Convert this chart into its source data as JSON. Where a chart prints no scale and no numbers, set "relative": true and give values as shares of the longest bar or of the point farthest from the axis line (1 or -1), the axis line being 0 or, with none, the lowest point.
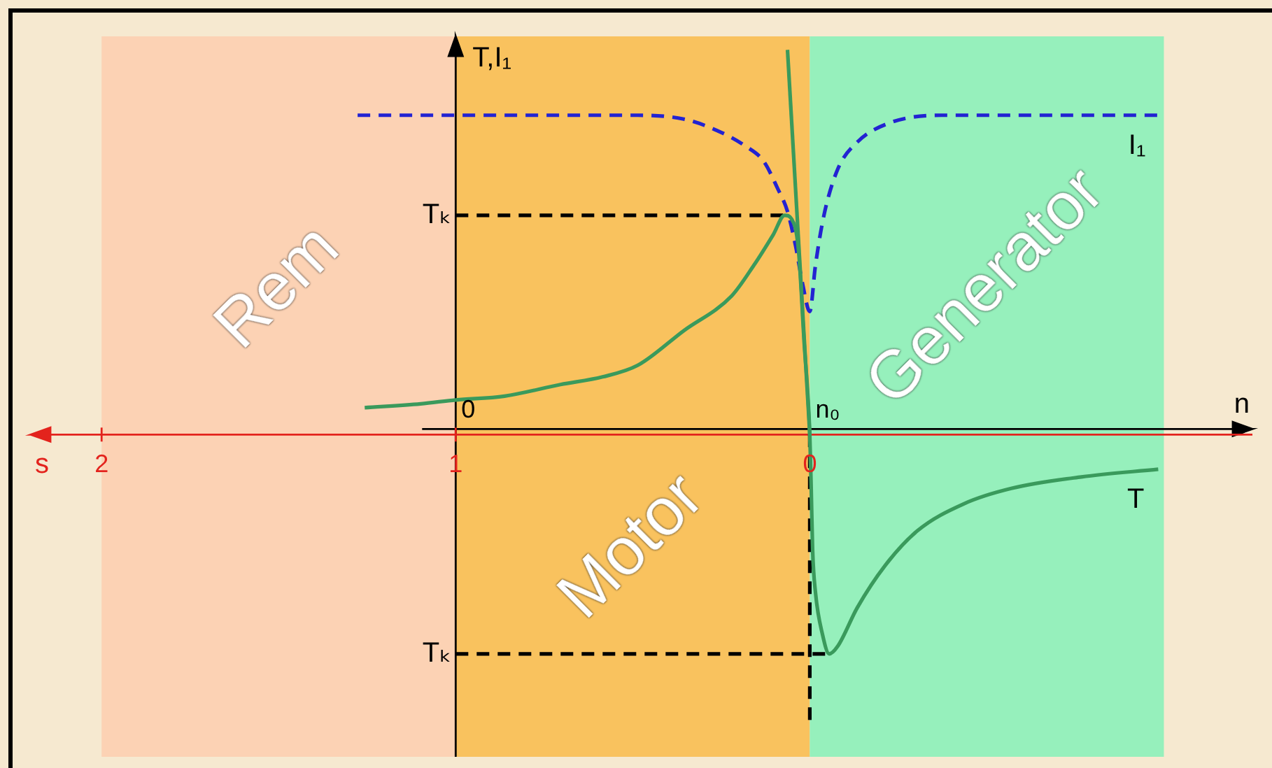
{
  "chart_data": {
    "type": "line",
    "relative": true,
    "xlabel": "s",
    "x2label": "n",
    "ylabel": "T,I₁",
    "xlim": [
      2.2,
      -1.25
    ],
    "xticks": [
      2,
      1,
      0
    ],
    "ref_lines": [
      {
        "axis": "x",
        "value": 1,
        "color": "#000000"
      }
    ],
    "bands": [
      {
        "axis": "x",
        "from": 2,
        "to": 1,
        "label": "Rem",
        "color": "#fcd2b4"
      },
      {
        "axis": "x",
        "from": 1,
        "to": 0,
        "label": "Motor",
        "color": "#f9c25e"
      },
      {
        "axis": "x",
        "from": 0,
        "to": -1,
        "label": "Generator",
        "color": "#96f0bc"
      }
    ],
    "series": [
      {
        "name": "T",
        "color": "#3a9a5c",
        "x": [
          1.257,
          1.099,
          1,
          0.862,
          0.704,
          0.585,
          0.486,
          0.356,
          0.221,
          0.158,
          0.103,
          0.071,
          0.051,
          0.032,
          0.016,
          0,
          -0.004,
          -0.008,
          -0.016,
          -0.036,
          -0.055,
          -0.079,
          -0.134,
          -0.213,
          -0.304,
          -0.435,
          -0.569,
          -0.767,
          -0.984
        ],
        "values": [
          0.07,
          0.08,
          0.09,
          0.1,
          0.13,
          0.15,
          0.18,
          0.27,
          0.36,
          0.44,
          0.52,
          0.57,
          0.56,
          0.48,
          0.24,
          0,
          -0.14,
          -0.3,
          -0.41,
          -0.52,
          -0.57,
          -0.55,
          -0.45,
          -0.34,
          -0.25,
          -0.18,
          -0.14,
          -0.11,
          -0.09
        ]
      },
      {
        "color": "#3a9a5c",
        "x": [
          0.063,
          0
        ],
        "values": [
          1,
          0
        ]
      },
      {
        "name": "I₁",
        "color": "#2323d2",
        "line_style": "dashed",
        "x": [
          1.277,
          1,
          0.704,
          0.486,
          0.356,
          0.261,
          0.182,
          0.13,
          0.091,
          0.063,
          0.04,
          0.02,
          0,
          -0.016,
          -0.04,
          -0.079,
          -0.134,
          -0.225,
          -0.372,
          -0.569,
          -0.988
        ],
        "values": [
          0.83,
          0.83,
          0.83,
          0.83,
          0.82,
          0.79,
          0.75,
          0.71,
          0.64,
          0.58,
          0.49,
          0.39,
          0.32,
          0.44,
          0.57,
          0.69,
          0.76,
          0.81,
          0.83,
          0.83,
          0.83
        ]
      },
      {
        "name": "Tₖ",
        "color": "#000000",
        "line_style": "dashed",
        "x": [
          1,
          0.071
        ],
        "values": [
          0.57,
          0.57
        ]
      },
      {
        "name": "Tₖ",
        "color": "#000000",
        "line_style": "dashed",
        "x": [
          1,
          -0.055
        ],
        "values": [
          -0.57,
          -0.57
        ]
      },
      {
        "color": "#000000",
        "line_style": "dashed",
        "x": [
          0,
          0
        ],
        "values": [
          0,
          -0.75
        ]
      }
    ],
    "annotations": [
      {
        "text": "0",
        "x": 1,
        "y": 0
      },
      {
        "text": "n₀",
        "x": 0,
        "y": 0
      }
    ]
  }
}
